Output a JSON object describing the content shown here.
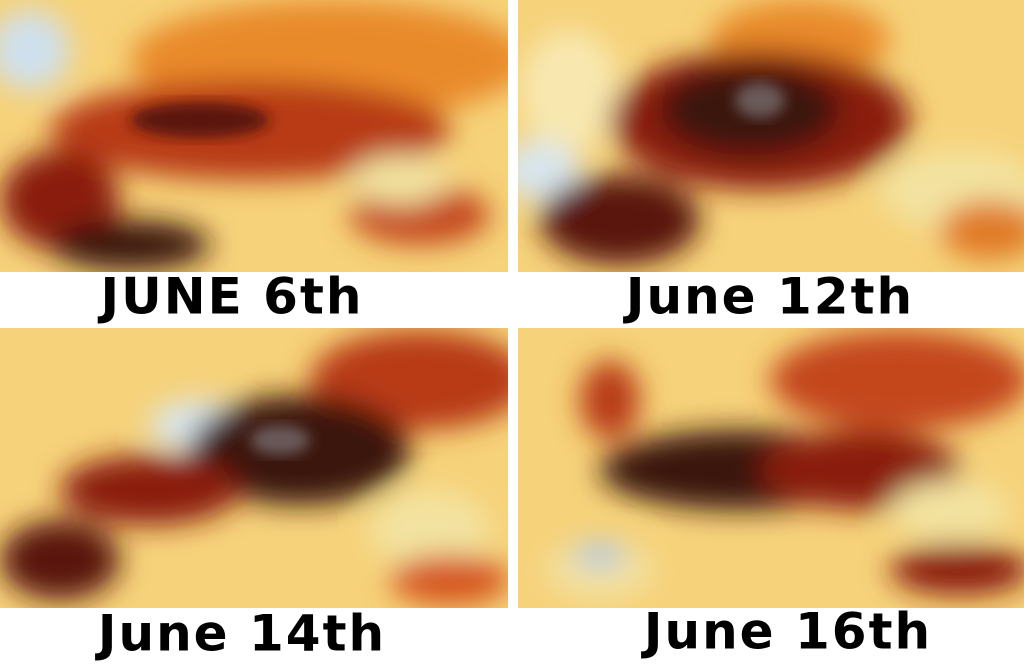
{
  "panels": [
    {
      "caption": "JUNE 6th"
    },
    {
      "caption": "June 12th"
    },
    {
      "caption": "June 14th"
    },
    {
      "caption": "June 16th"
    }
  ]
}
